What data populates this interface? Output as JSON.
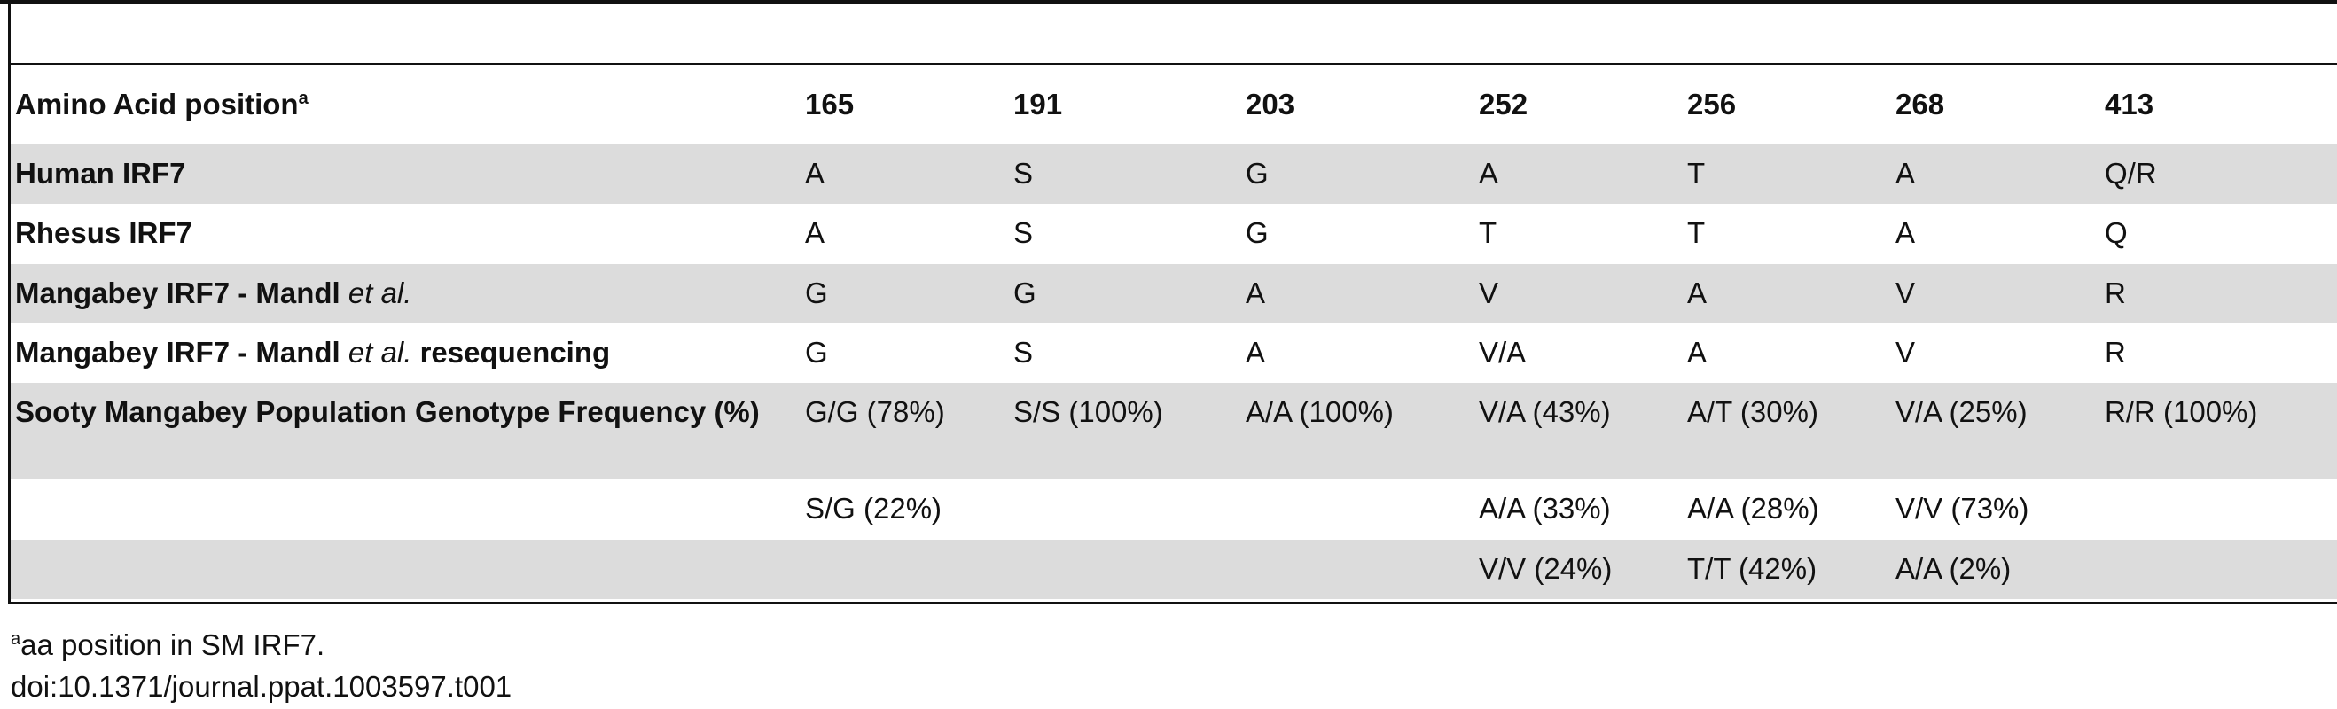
{
  "table": {
    "header": {
      "label": "Amino Acid position",
      "label_sup": "a",
      "columns": [
        "165",
        "191",
        "203",
        "252",
        "256",
        "268",
        "413"
      ]
    },
    "rows": [
      {
        "label": [
          "Human IRF7"
        ],
        "cells": [
          "A",
          "S",
          "G",
          "A",
          "T",
          "A",
          "Q/R"
        ]
      },
      {
        "label": [
          "Rhesus IRF7"
        ],
        "cells": [
          "A",
          "S",
          "G",
          "T",
          "T",
          "A",
          "Q"
        ]
      },
      {
        "label": [
          "Mangabey IRF7 - Mandl ",
          "et al."
        ],
        "cells": [
          "G",
          "G",
          "A",
          "V",
          "A",
          "V",
          "R"
        ]
      },
      {
        "label": [
          "Mangabey IRF7 - Mandl ",
          "et al.",
          " resequencing"
        ],
        "cells": [
          "G",
          "S",
          "A",
          "V/A",
          "A",
          "V",
          "R"
        ]
      },
      {
        "label": [
          "Sooty Mangabey Population Genotype Frequency (%)"
        ],
        "cells": [
          "G/G (78%)",
          "S/S (100%)",
          "A/A (100%)",
          "V/A (43%)",
          "A/T (30%)",
          "V/A (25%)",
          "R/R (100%)"
        ]
      },
      {
        "label": null,
        "cells": [
          "S/G (22%)",
          null,
          null,
          "A/A (33%)",
          "A/A (28%)",
          "V/V (73%)",
          null
        ]
      },
      {
        "label": null,
        "cells": [
          null,
          null,
          null,
          "V/V (24%)",
          "T/T (42%)",
          "A/A (2%)",
          null
        ]
      }
    ],
    "footnote": {
      "sup": "a",
      "text": "aa position in SM IRF7."
    },
    "doi": "doi:10.1371/journal.ppat.1003597.t001"
  }
}
